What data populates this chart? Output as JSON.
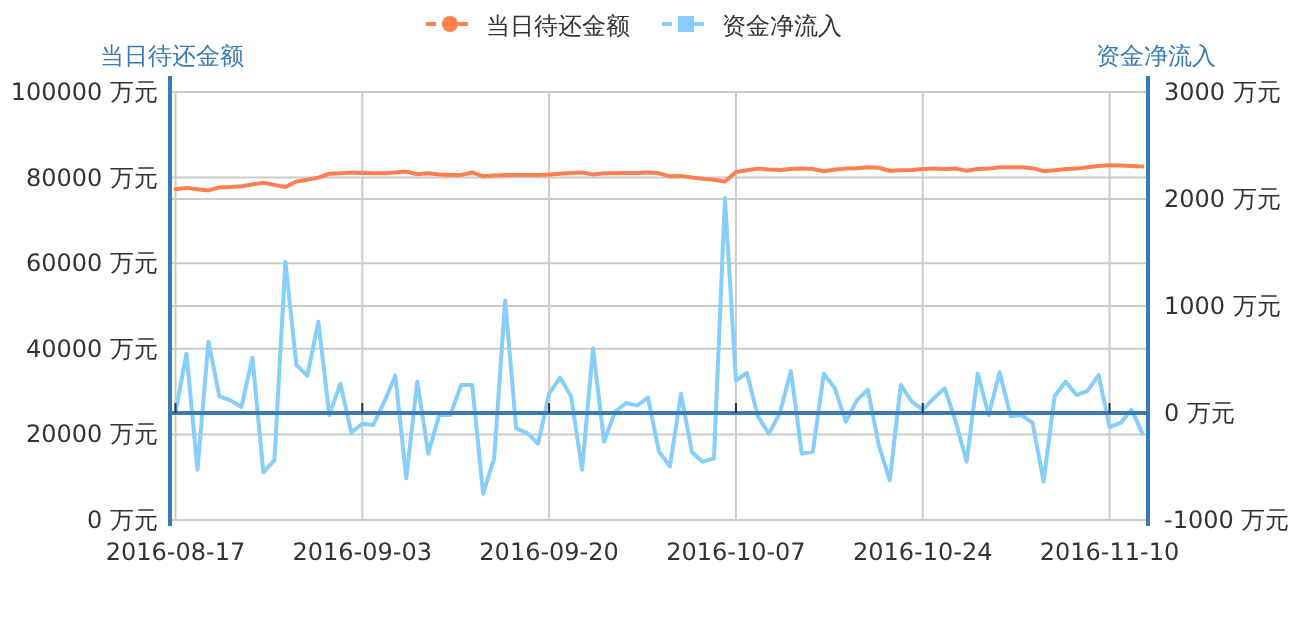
{
  "chart_data": {
    "type": "line",
    "ylabel": "当日待还金额",
    "y2label": "资金净流入",
    "legend": "top",
    "grid": true,
    "ref_lines": [
      {
        "axis": "y2",
        "value": 0,
        "color": "#3a7ab5"
      }
    ],
    "categories": [
      "2016-08-17",
      null,
      null,
      null,
      null,
      null,
      null,
      null,
      null,
      null,
      null,
      null,
      null,
      null,
      null,
      null,
      null,
      "2016-09-03",
      null,
      null,
      null,
      null,
      null,
      null,
      null,
      null,
      null,
      null,
      null,
      null,
      null,
      null,
      null,
      null,
      "2016-09-20",
      null,
      null,
      null,
      null,
      null,
      null,
      null,
      null,
      null,
      null,
      null,
      null,
      null,
      null,
      null,
      null,
      "2016-10-07",
      null,
      null,
      null,
      null,
      null,
      null,
      null,
      null,
      null,
      null,
      null,
      null,
      null,
      null,
      null,
      null,
      "2016-10-24",
      null,
      null,
      null,
      null,
      null,
      null,
      null,
      null,
      null,
      null,
      null,
      null,
      null,
      null,
      null,
      null,
      "2016-11-10",
      null,
      null,
      null
    ],
    "ylim": [
      0,
      100000
    ],
    "yticks": [
      {
        "value": 0,
        "label": "0 万元"
      },
      {
        "value": 20000,
        "label": "20000 万元"
      },
      {
        "value": 40000,
        "label": "40000 万元"
      },
      {
        "value": 60000,
        "label": "60000 万元"
      },
      {
        "value": 80000,
        "label": "80000 万元"
      },
      {
        "value": 100000,
        "label": "100000 万元"
      }
    ],
    "y2lim": [
      -1000,
      3000
    ],
    "y2ticks": [
      {
        "value": -1000,
        "label": "-1000 万元"
      },
      {
        "value": 0,
        "label": "0 万元"
      },
      {
        "value": 1000,
        "label": "1000 万元"
      },
      {
        "value": 2000,
        "label": "2000 万元"
      },
      {
        "value": 3000,
        "label": "3000 万元"
      }
    ],
    "series": [
      {
        "name": "当日待还金额",
        "color": "#ff7f50",
        "values": [
          77300,
          77600,
          77300,
          77000,
          77700,
          77800,
          78000,
          78400,
          78800,
          78300,
          77800,
          79100,
          79500,
          80000,
          80900,
          81000,
          81200,
          81100,
          81000,
          81000,
          81200,
          81400,
          80800,
          81000,
          80700,
          80600,
          80600,
          81200,
          80300,
          80500,
          80600,
          80600,
          80600,
          80600,
          80700,
          80900,
          81100,
          81200,
          80700,
          81000,
          81000,
          81100,
          81100,
          81200,
          81000,
          80300,
          80400,
          80000,
          79700,
          79500,
          79100,
          81300,
          81700,
          82100,
          81900,
          81800,
          82000,
          82100,
          82000,
          81500,
          81900,
          82100,
          82200,
          82400,
          82300,
          81600,
          81700,
          81800,
          82000,
          82100,
          82000,
          82100,
          81600,
          82000,
          82100,
          82400,
          82400,
          82400,
          82200,
          81500,
          81700,
          82000,
          82100,
          82400,
          82700,
          82900,
          82800,
          82700,
          82600
        ]
      },
      {
        "name": "资金净流入",
        "color": "#87cefa",
        "axis": "y2",
        "values": [
          10,
          554,
          -530,
          667,
          156,
          118,
          56,
          517,
          -554,
          -442,
          1414,
          449,
          349,
          854,
          -19,
          274,
          -181,
          -100,
          -112,
          106,
          349,
          -611,
          293,
          -380,
          -19,
          -19,
          262,
          262,
          -754,
          -424,
          1053,
          -143,
          -187,
          -287,
          181,
          330,
          156,
          -530,
          604,
          -268,
          12,
          93,
          69,
          143,
          -361,
          -498,
          181,
          -368,
          -455,
          -424,
          2006,
          305,
          374,
          -31,
          -193,
          0,
          392,
          -380,
          -361,
          368,
          231,
          -81,
          118,
          218,
          -299,
          -629,
          262,
          106,
          31,
          137,
          231,
          -81,
          -455,
          368,
          -19,
          380,
          -31,
          -19,
          -93,
          -642,
          156,
          293,
          168,
          206,
          355,
          -131,
          -93,
          31,
          -193
        ]
      }
    ]
  }
}
